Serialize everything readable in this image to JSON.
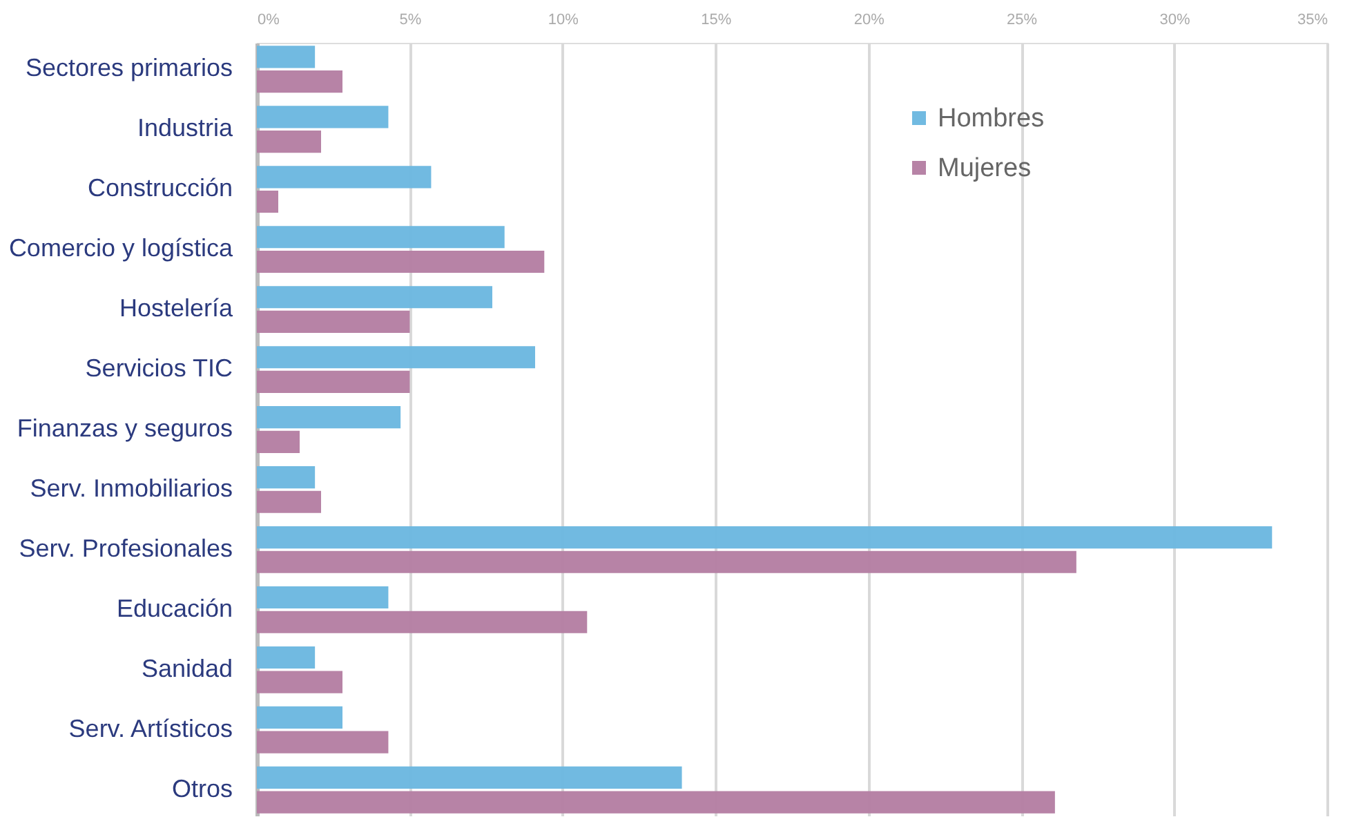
{
  "chart_data": {
    "type": "bar",
    "orientation": "horizontal",
    "categories": [
      "Sectores primarios",
      "Industria",
      "Construcción",
      "Comercio y logística",
      "Hostelería",
      "Servicios TIC",
      "Finanzas y seguros",
      "Serv. Inmobiliarios",
      "Serv. Profesionales",
      "Educación",
      "Sanidad",
      "Serv. Artísticos",
      "Otros"
    ],
    "series": [
      {
        "name": "Hombres",
        "color": "#6cb8e0",
        "values": [
          1.9,
          4.3,
          5.7,
          8.1,
          7.7,
          9.1,
          4.7,
          1.9,
          33.2,
          4.3,
          1.9,
          2.8,
          13.9
        ]
      },
      {
        "name": "Mujeres",
        "color": "#b57fa3",
        "values": [
          2.8,
          2.1,
          0.7,
          9.4,
          5.0,
          5.0,
          1.4,
          2.1,
          26.8,
          10.8,
          2.8,
          4.3,
          26.1
        ]
      }
    ],
    "xlim": [
      0,
      35
    ],
    "xticks": [
      {
        "value": 0,
        "label": "0%"
      },
      {
        "value": 5,
        "label": "5%"
      },
      {
        "value": 10,
        "label": "10%"
      },
      {
        "value": 15,
        "label": "15%"
      },
      {
        "value": 20,
        "label": "20%"
      },
      {
        "value": 25,
        "label": "25%"
      },
      {
        "value": 30,
        "label": "30%"
      },
      {
        "value": 35,
        "label": "35%"
      }
    ],
    "grid": "x",
    "legend": "top right"
  }
}
